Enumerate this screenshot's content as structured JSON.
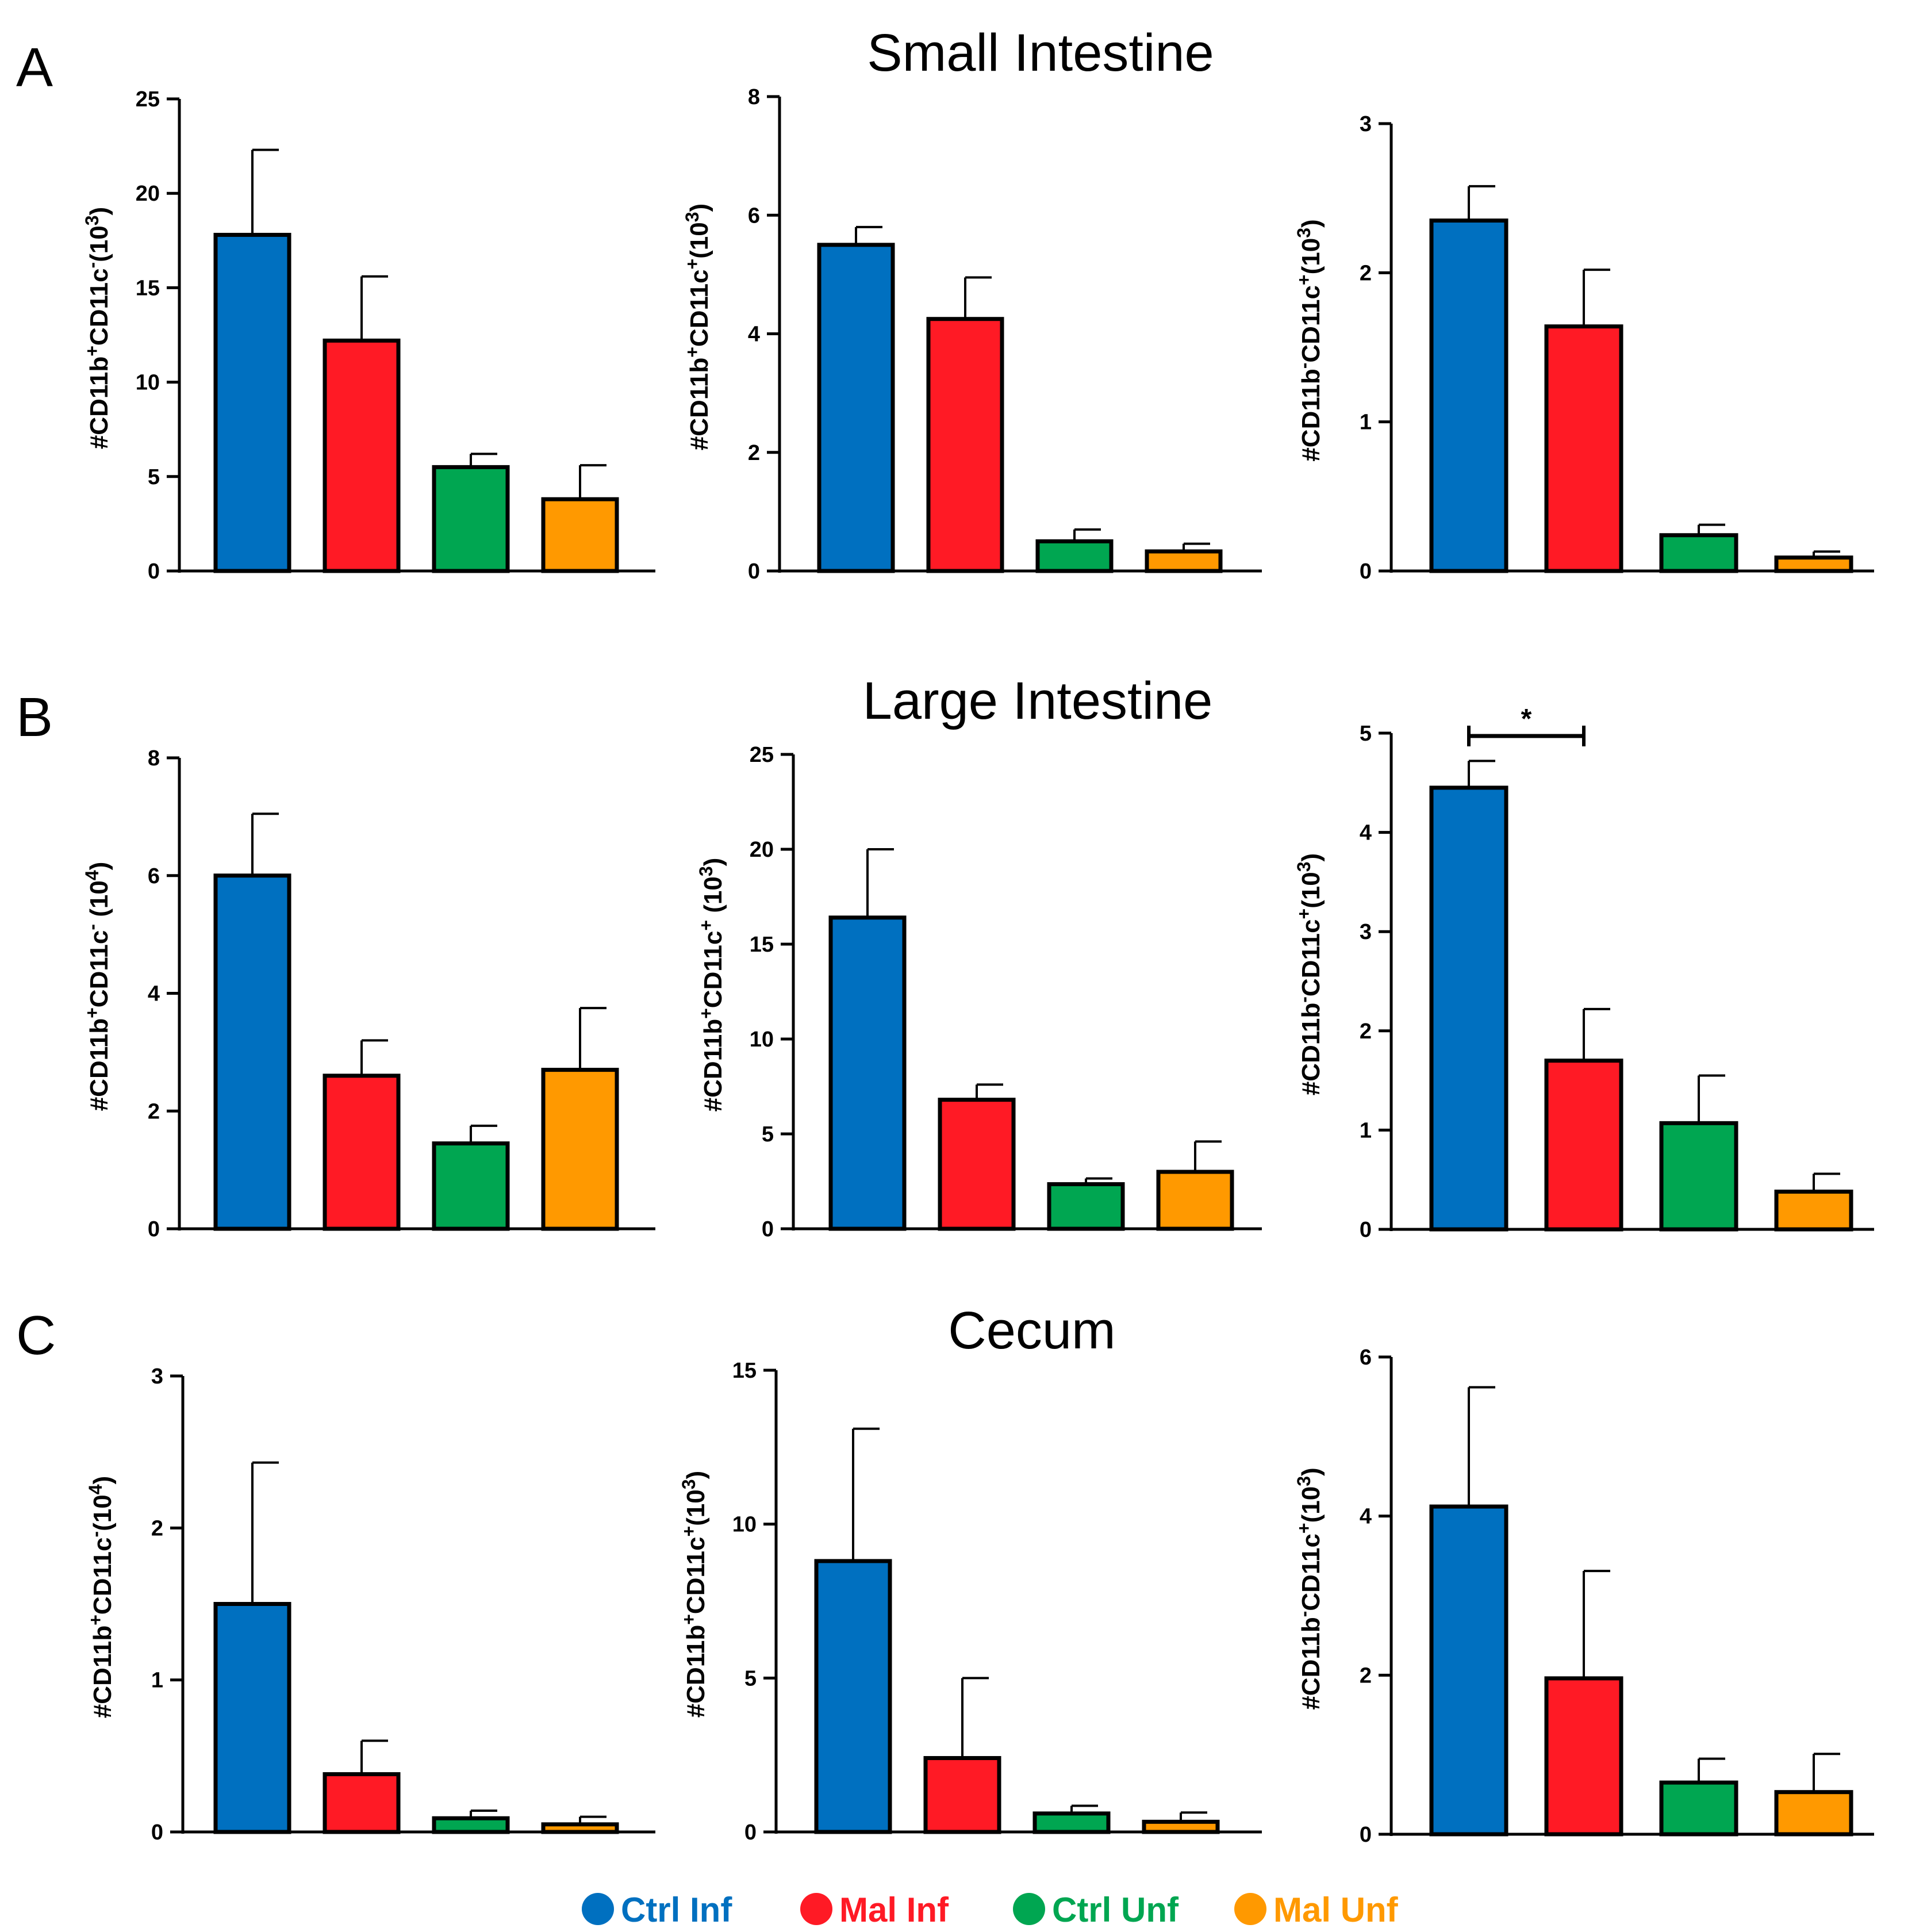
{
  "panels": [
    {
      "letter": "A",
      "title": "Small Intestine"
    },
    {
      "letter": "B",
      "title": "Large Intestine"
    },
    {
      "letter": "C",
      "title": "Cecum"
    }
  ],
  "legend": [
    {
      "label": "Ctrl Inf",
      "color": "#0070c0"
    },
    {
      "label": "Mal Inf",
      "color": "#ff1a25"
    },
    {
      "label": "Ctrl Unf",
      "color": "#00a651"
    },
    {
      "label": "Mal Unf",
      "color": "#ff9900"
    }
  ],
  "chart_data": [
    {
      "type": "bar",
      "panel": "A",
      "ylabel": {
        "base": "#CD11b",
        "s1": "+",
        "mid": "CD11c",
        "s2": "-",
        "unit": "(10",
        "exp": "3",
        "close": ")"
      },
      "ylim": [
        0,
        25
      ],
      "yticks": [
        0,
        5,
        10,
        15,
        20,
        25
      ],
      "categories": [
        "Ctrl Inf",
        "Mal Inf",
        "Ctrl Unf",
        "Mal Unf"
      ],
      "values": [
        17.8,
        12.2,
        5.5,
        3.8
      ],
      "errors": [
        4.5,
        3.4,
        0.7,
        1.8
      ]
    },
    {
      "type": "bar",
      "panel": "A",
      "ylabel": {
        "base": "#CD11b",
        "s1": "+",
        "mid": "CD11c",
        "s2": "+",
        "unit": "(10",
        "exp": "3",
        "close": ")"
      },
      "ylim": [
        0,
        8
      ],
      "yticks": [
        0,
        2,
        4,
        6,
        8
      ],
      "categories": [
        "Ctrl Inf",
        "Mal Inf",
        "Ctrl Unf",
        "Mal Unf"
      ],
      "values": [
        5.5,
        4.25,
        0.5,
        0.33
      ],
      "errors": [
        0.3,
        0.7,
        0.2,
        0.13
      ]
    },
    {
      "type": "bar",
      "panel": "A",
      "ylabel": {
        "base": "#CD11b",
        "s1": "-",
        "mid": "CD11c",
        "s2": "+",
        "unit": "(10",
        "exp": "3",
        "close": ")"
      },
      "ylim": [
        0,
        3
      ],
      "yticks": [
        0,
        1,
        2,
        3
      ],
      "categories": [
        "Ctrl Inf",
        "Mal Inf",
        "Ctrl Unf",
        "Mal Unf"
      ],
      "values": [
        2.35,
        1.64,
        0.24,
        0.09
      ],
      "errors": [
        0.23,
        0.38,
        0.07,
        0.04
      ]
    },
    {
      "type": "bar",
      "panel": "B",
      "ylabel": {
        "base": "#CD11b",
        "s1": "+",
        "mid": "CD11c",
        "s2": "-",
        "unit": " (10",
        "exp": "4",
        "close": ")"
      },
      "ylim": [
        0,
        8
      ],
      "yticks": [
        0,
        2,
        4,
        6,
        8
      ],
      "categories": [
        "Ctrl Inf",
        "Mal Inf",
        "Ctrl Unf",
        "Mal Unf"
      ],
      "values": [
        6.0,
        2.6,
        1.45,
        2.7
      ],
      "errors": [
        1.05,
        0.6,
        0.3,
        1.05
      ]
    },
    {
      "type": "bar",
      "panel": "B",
      "ylabel": {
        "base": "#CD11b",
        "s1": "+",
        "mid": "CD11c",
        "s2": "+",
        "unit": " (10",
        "exp": "3",
        "close": ")"
      },
      "ylim": [
        0,
        25
      ],
      "yticks": [
        0,
        5,
        10,
        15,
        20,
        25
      ],
      "categories": [
        "Ctrl Inf",
        "Mal Inf",
        "Ctrl Unf",
        "Mal Unf"
      ],
      "values": [
        16.4,
        6.8,
        2.35,
        3.0
      ],
      "errors": [
        3.6,
        0.8,
        0.3,
        1.6
      ]
    },
    {
      "type": "bar",
      "panel": "B",
      "ylabel": {
        "base": "#CD11b",
        "s1": "-",
        "mid": "CD11c",
        "s2": "+",
        "unit": "(10",
        "exp": "3",
        "close": ")"
      },
      "ylim": [
        0,
        5
      ],
      "yticks": [
        0,
        1,
        2,
        3,
        4,
        5
      ],
      "categories": [
        "Ctrl Inf",
        "Mal Inf",
        "Ctrl Unf",
        "Mal Unf"
      ],
      "values": [
        4.45,
        1.7,
        1.07,
        0.38
      ],
      "errors": [
        0.27,
        0.52,
        0.48,
        0.18
      ],
      "significance": {
        "from": 0,
        "to": 1,
        "label": "*"
      }
    },
    {
      "type": "bar",
      "panel": "C",
      "ylabel": {
        "base": "#CD11b",
        "s1": "+",
        "mid": "CD11c",
        "s2": "-",
        "unit": "(10",
        "exp": "4",
        "close": ")"
      },
      "ylim": [
        0,
        3
      ],
      "yticks": [
        0,
        1,
        2,
        3
      ],
      "categories": [
        "Ctrl Inf",
        "Mal Inf",
        "Ctrl Unf",
        "Mal Unf"
      ],
      "values": [
        1.5,
        0.38,
        0.09,
        0.05
      ],
      "errors": [
        0.93,
        0.22,
        0.05,
        0.05
      ]
    },
    {
      "type": "bar",
      "panel": "C",
      "ylabel": {
        "base": "#CD11b",
        "s1": "+",
        "mid": "CD11c",
        "s2": "+",
        "unit": "(10",
        "exp": "3",
        "close": ")"
      },
      "ylim": [
        0,
        15
      ],
      "yticks": [
        0,
        5,
        10,
        15
      ],
      "categories": [
        "Ctrl Inf",
        "Mal Inf",
        "Ctrl Unf",
        "Mal Unf"
      ],
      "values": [
        8.8,
        2.4,
        0.6,
        0.33
      ],
      "errors": [
        4.3,
        2.6,
        0.25,
        0.3
      ]
    },
    {
      "type": "bar",
      "panel": "C",
      "ylabel": {
        "base": "#CD11b",
        "s1": "-",
        "mid": "CD11c",
        "s2": "+",
        "unit": "(10",
        "exp": "3",
        "close": ")"
      },
      "ylim": [
        0,
        6
      ],
      "yticks": [
        0,
        2,
        4,
        6
      ],
      "categories": [
        "Ctrl Inf",
        "Mal Inf",
        "Ctrl Unf",
        "Mal Unf"
      ],
      "values": [
        4.12,
        1.96,
        0.65,
        0.53
      ],
      "errors": [
        1.5,
        1.35,
        0.3,
        0.48
      ]
    }
  ]
}
